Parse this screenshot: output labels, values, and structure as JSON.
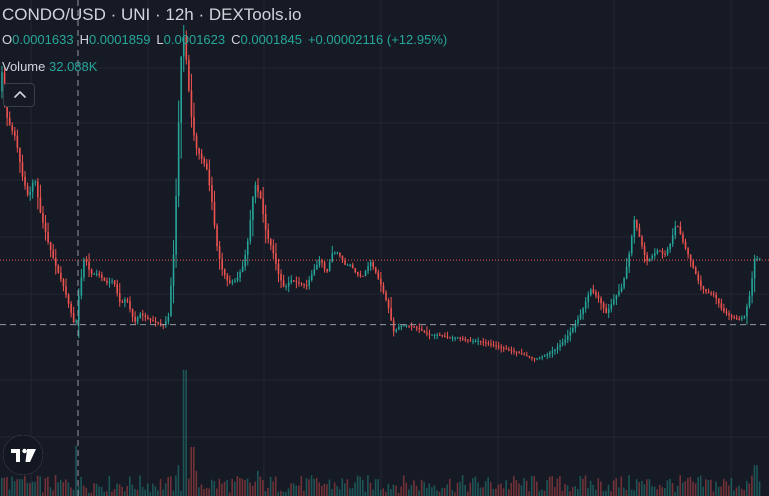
{
  "header": {
    "title": "CONDO/USD · UNI · 12h · DEXTools.io"
  },
  "ohlc": {
    "open_label": "O",
    "open": "0.0001633",
    "high_label": "H",
    "high": "0.0001859",
    "low_label": "L",
    "low": "0.0001623",
    "close_label": "C",
    "close": "0.0001845",
    "change": "+0.00002116 (+12.95%)"
  },
  "volume": {
    "label": "Volume",
    "value": "32.088K"
  },
  "icons": {
    "collapse": "chevron-up-icon",
    "logo": "tradingview-logo-icon"
  },
  "colors": {
    "background": "#161a25",
    "up": "#26a69a",
    "down": "#ef5350",
    "grid": "#242733",
    "crosshair": "#9598a1",
    "last_price_line": "#ef5350"
  },
  "chart_data": {
    "type": "candlestick",
    "symbol": "CONDO/USD",
    "interval": "12h",
    "grid": true,
    "price_points": [
      [
        0,
        0.00024
      ],
      [
        3,
        0.000248
      ],
      [
        8,
        0.000232
      ],
      [
        12,
        0.000228
      ],
      [
        17,
        0.000225
      ],
      [
        24,
        0.000212
      ],
      [
        30,
        0.000205
      ],
      [
        36,
        0.000212
      ],
      [
        42,
        0.0002
      ],
      [
        50,
        0.00019
      ],
      [
        58,
        0.000182
      ],
      [
        65,
        0.000176
      ],
      [
        72,
        0.000168
      ],
      [
        77,
        0.000162
      ],
      [
        80,
        0.000172
      ],
      [
        86,
        0.000186
      ],
      [
        92,
        0.00018
      ],
      [
        100,
        0.00018
      ],
      [
        108,
        0.000177
      ],
      [
        115,
        0.000178
      ],
      [
        122,
        0.00017
      ],
      [
        128,
        0.000172
      ],
      [
        136,
        0.000164
      ],
      [
        142,
        0.000167
      ],
      [
        150,
        0.000165
      ],
      [
        158,
        0.000164
      ],
      [
        165,
        0.000163
      ],
      [
        170,
        0.000166
      ],
      [
        176,
        0.00019
      ],
      [
        180,
        0.000228
      ],
      [
        184,
        0.000262
      ],
      [
        188,
        0.00025
      ],
      [
        192,
        0.000234
      ],
      [
        197,
        0.000222
      ],
      [
        203,
        0.000218
      ],
      [
        208,
        0.000215
      ],
      [
        213,
        0.000205
      ],
      [
        218,
        0.00019
      ],
      [
        223,
        0.000182
      ],
      [
        230,
        0.000177
      ],
      [
        238,
        0.000178
      ],
      [
        245,
        0.000183
      ],
      [
        250,
        0.000192
      ],
      [
        256,
        0.00021
      ],
      [
        262,
        0.000205
      ],
      [
        268,
        0.000193
      ],
      [
        274,
        0.000188
      ],
      [
        280,
        0.00018
      ],
      [
        286,
        0.000175
      ],
      [
        292,
        0.000178
      ],
      [
        300,
        0.000177
      ],
      [
        308,
        0.000176
      ],
      [
        315,
        0.000181
      ],
      [
        322,
        0.000185
      ],
      [
        328,
        0.00018
      ],
      [
        334,
        0.000187
      ],
      [
        340,
        0.000187
      ],
      [
        346,
        0.000183
      ],
      [
        352,
        0.000183
      ],
      [
        358,
        0.00018
      ],
      [
        364,
        0.000179
      ],
      [
        372,
        0.000184
      ],
      [
        378,
        0.00018
      ],
      [
        384,
        0.000175
      ],
      [
        390,
        0.000169
      ],
      [
        395,
        0.000161
      ],
      [
        402,
        0.000163
      ],
      [
        410,
        0.000163
      ],
      [
        420,
        0.000162
      ],
      [
        430,
        0.00016
      ],
      [
        440,
        0.00016
      ],
      [
        450,
        0.000159
      ],
      [
        460,
        0.000159
      ],
      [
        470,
        0.000158
      ],
      [
        480,
        0.000158
      ],
      [
        490,
        0.000157
      ],
      [
        500,
        0.000156
      ],
      [
        510,
        0.000155
      ],
      [
        520,
        0.000154
      ],
      [
        528,
        0.000153
      ],
      [
        536,
        0.000152
      ],
      [
        546,
        0.000153
      ],
      [
        556,
        0.000155
      ],
      [
        566,
        0.000158
      ],
      [
        576,
        0.000163
      ],
      [
        584,
        0.000168
      ],
      [
        592,
        0.000175
      ],
      [
        600,
        0.000172
      ],
      [
        608,
        0.000167
      ],
      [
        616,
        0.000172
      ],
      [
        624,
        0.000176
      ],
      [
        630,
        0.000185
      ],
      [
        636,
        0.000198
      ],
      [
        642,
        0.000191
      ],
      [
        648,
        0.000184
      ],
      [
        654,
        0.000186
      ],
      [
        660,
        0.000188
      ],
      [
        666,
        0.000186
      ],
      [
        672,
        0.00019
      ],
      [
        678,
        0.000197
      ],
      [
        684,
        0.000191
      ],
      [
        690,
        0.000186
      ],
      [
        696,
        0.000181
      ],
      [
        702,
        0.000176
      ],
      [
        708,
        0.000174
      ],
      [
        716,
        0.000173
      ],
      [
        724,
        0.000168
      ],
      [
        732,
        0.000166
      ],
      [
        740,
        0.000165
      ],
      [
        746,
        0.000166
      ],
      [
        752,
        0.000174
      ],
      [
        756,
        0.000185
      ],
      [
        759,
        0.000185
      ]
    ],
    "last_price": 0.0001845,
    "crosshair_price": 0.0001633,
    "price_range": [
      0.000107,
      0.00027
    ],
    "volume_spikes": [
      [
        76,
        0.36
      ],
      [
        184,
        0.9
      ],
      [
        186,
        0.42
      ],
      [
        178,
        0.22
      ],
      [
        192,
        0.35
      ],
      [
        196,
        0.18
      ],
      [
        257,
        0.18
      ],
      [
        376,
        0.12
      ],
      [
        636,
        0.12
      ],
      [
        680,
        0.1
      ],
      [
        755,
        0.22
      ],
      [
        2,
        0.13
      ],
      [
        20,
        0.12
      ]
    ]
  }
}
